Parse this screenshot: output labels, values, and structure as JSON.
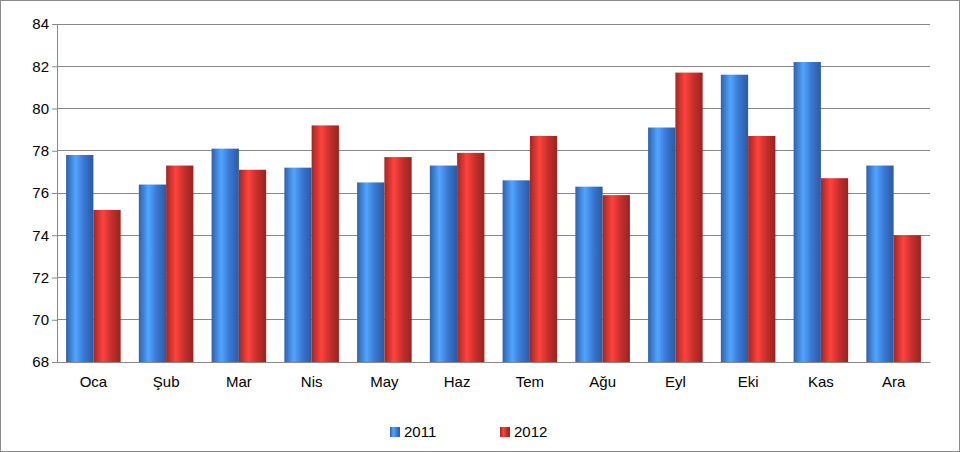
{
  "chart_data": {
    "type": "bar",
    "categories": [
      "Oca",
      "Şub",
      "Mar",
      "Nis",
      "May",
      "Haz",
      "Tem",
      "Ağu",
      "Eyl",
      "Eki",
      "Kas",
      "Ara"
    ],
    "series": [
      {
        "name": "2011",
        "color": "#3a78d4",
        "values": [
          77.8,
          76.4,
          78.1,
          77.2,
          76.5,
          77.3,
          76.6,
          76.3,
          79.1,
          81.6,
          82.2,
          77.3
        ]
      },
      {
        "name": "2012",
        "color": "#c8302c",
        "values": [
          75.2,
          77.3,
          77.1,
          79.2,
          77.7,
          77.9,
          78.7,
          75.9,
          81.7,
          78.7,
          76.7,
          74.0
        ]
      }
    ],
    "ylim": [
      68,
      84
    ],
    "yticks": [
      68,
      70,
      72,
      74,
      76,
      78,
      80,
      82,
      84
    ],
    "grid": true,
    "legend": "bottom"
  }
}
